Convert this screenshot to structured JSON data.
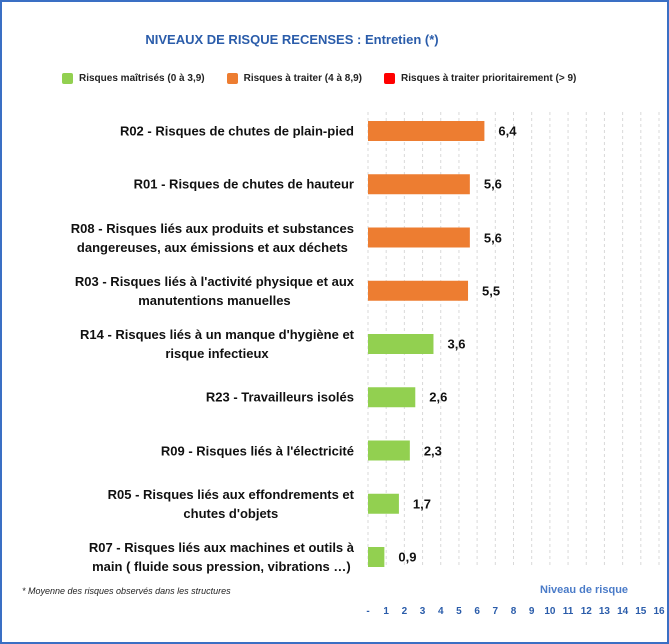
{
  "chart_data": {
    "type": "hbar",
    "title": "NIVEAUX DE RISQUE RECENSES :  Entretien (*)",
    "legend": [
      {
        "name": "Risques maîtrisés (0 à 3,9)",
        "color": "#92d050"
      },
      {
        "name": "Risques à traiter (4 à 8,9)",
        "color": "#ed7d31"
      },
      {
        "name": "Risques à traiter prioritairement (> 9)",
        "color": "#ff0000"
      }
    ],
    "categories": [
      "R02 - Risques de chutes de plain-pied",
      "R01 - Risques de chutes de hauteur",
      "R08 - Risques liés aux produits et substances\ndangereuses, aux émissions et aux déchets",
      "R03 - Risques liés à l'activité physique et aux\nmanutentions manuelles",
      "R14 - Risques liés à un manque d'hygiène et\nrisque infectieux",
      "R23 - Travailleurs isolés",
      "R09 - Risques liés à l'électricité",
      "R05 - Risques liés aux effondrements et\nchutes d'objets",
      "R07 - Risques liés aux machines et outils à\nmain ( fluide sous pression, vibrations …)"
    ],
    "values": [
      6.4,
      5.6,
      5.6,
      5.5,
      3.6,
      2.6,
      2.3,
      1.7,
      0.9
    ],
    "value_labels": [
      "6,4",
      "5,6",
      "5,6",
      "5,5",
      "3,6",
      "2,6",
      "2,3",
      "1,7",
      "0,9"
    ],
    "colors": [
      "#ed7d31",
      "#ed7d31",
      "#ed7d31",
      "#ed7d31",
      "#92d050",
      "#92d050",
      "#92d050",
      "#92d050",
      "#92d050"
    ],
    "xlim": [
      0,
      16
    ],
    "xticks": [
      {
        "value": 0,
        "label": "-"
      },
      1,
      2,
      3,
      4,
      5,
      6,
      7,
      8,
      9,
      10,
      11,
      12,
      13,
      14,
      15,
      16
    ],
    "x_label": "Niveau de risque",
    "footnote": "* Moyenne des risques observés dans les structures",
    "grid": true
  }
}
